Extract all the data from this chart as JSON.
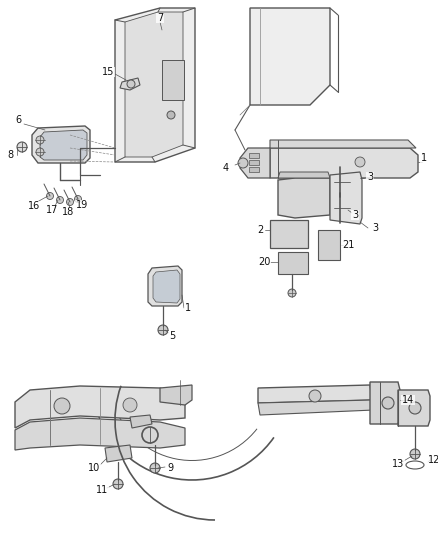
{
  "background_color": "#ffffff",
  "line_color": "#555555",
  "fill_color": "#e8e8e8",
  "fill_dark": "#cccccc",
  "label_color": "#111111",
  "figsize": [
    4.38,
    5.33
  ],
  "dpi": 100
}
